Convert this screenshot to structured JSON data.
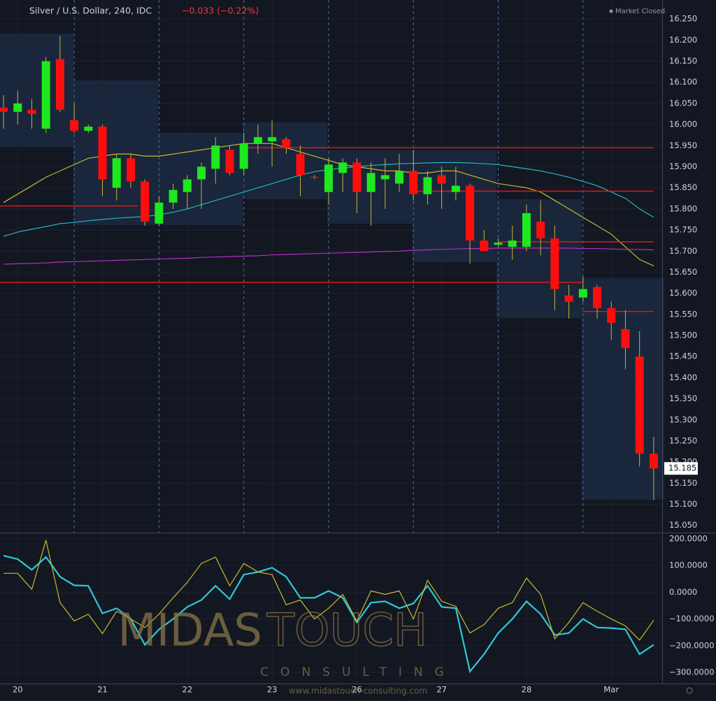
{
  "header": {
    "symbol": "Silver / U.S. Dollar, 240, IDC",
    "change": "−0.033 (−0.22%)",
    "status": "Market Closed"
  },
  "watermark": {
    "brand_left": "MIDAS",
    "brand_right": "TOUCH",
    "tagline": "CONSULTING",
    "url": "www.midastouch-consulting.com"
  },
  "chart_data": [
    {
      "type": "candlestick",
      "open": [
        16.04,
        16.03,
        16.035,
        15.99,
        16.155,
        16.01,
        15.985,
        15.995,
        15.85,
        15.92,
        15.865,
        15.765,
        15.815,
        15.84,
        15.87,
        15.895,
        15.94,
        15.895,
        15.955,
        15.96,
        15.965,
        15.93,
        15.876,
        15.84,
        15.885,
        15.91,
        15.84,
        15.87,
        15.86,
        15.89,
        15.835,
        15.88,
        15.84,
        15.855,
        15.725,
        15.715,
        15.71,
        15.71,
        15.77,
        15.73,
        15.595,
        15.59,
        15.615,
        15.565,
        15.515,
        15.45,
        15.22
      ],
      "high": [
        16.07,
        16.08,
        16.06,
        16.16,
        16.21,
        16.05,
        16.0,
        16.0,
        15.93,
        15.93,
        15.87,
        15.83,
        15.86,
        15.88,
        15.91,
        15.97,
        15.95,
        15.98,
        16.0,
        16.01,
        15.97,
        15.95,
        15.88,
        15.92,
        15.92,
        15.92,
        15.91,
        15.92,
        15.93,
        15.94,
        15.89,
        15.9,
        15.9,
        15.86,
        15.75,
        15.73,
        15.76,
        15.81,
        15.82,
        15.76,
        15.62,
        15.64,
        15.62,
        15.58,
        15.56,
        15.51,
        15.26
      ],
      "low": [
        15.99,
        16.0,
        15.99,
        15.98,
        16.03,
        15.98,
        15.98,
        15.83,
        15.82,
        15.85,
        15.76,
        15.76,
        15.8,
        15.8,
        15.8,
        15.86,
        15.88,
        15.88,
        15.93,
        15.9,
        15.93,
        15.83,
        15.87,
        15.81,
        15.84,
        15.79,
        15.76,
        15.8,
        15.84,
        15.82,
        15.81,
        15.8,
        15.82,
        15.67,
        15.7,
        15.71,
        15.68,
        15.7,
        15.69,
        15.56,
        15.54,
        15.58,
        15.54,
        15.49,
        15.42,
        15.19,
        15.11
      ],
      "close": [
        16.03,
        16.05,
        16.025,
        16.15,
        16.035,
        15.985,
        15.995,
        15.87,
        15.92,
        15.865,
        15.77,
        15.815,
        15.845,
        15.87,
        15.9,
        15.95,
        15.885,
        15.955,
        15.97,
        15.97,
        15.945,
        15.88,
        15.874,
        15.905,
        15.91,
        15.84,
        15.885,
        15.88,
        15.89,
        15.835,
        15.875,
        15.86,
        15.855,
        15.725,
        15.7,
        15.72,
        15.725,
        15.79,
        15.73,
        15.61,
        15.58,
        15.61,
        15.565,
        15.53,
        15.47,
        15.22,
        15.185
      ],
      "up_color": "#1ee81e",
      "down_color": "#ff0d0d",
      "ma_lines": [
        {
          "color": "#c9b82c",
          "values": [
            15.815,
            15.835,
            15.855,
            15.875,
            15.89,
            15.905,
            15.92,
            15.925,
            15.93,
            15.93,
            15.925,
            15.925,
            15.93,
            15.935,
            15.94,
            15.945,
            15.95,
            15.955,
            15.955,
            15.955,
            15.945,
            15.935,
            15.925,
            15.915,
            15.905,
            15.9,
            15.895,
            15.89,
            15.89,
            15.885,
            15.885,
            15.89,
            15.89,
            15.88,
            15.87,
            15.86,
            15.855,
            15.85,
            15.84,
            15.82,
            15.8,
            15.78,
            15.76,
            15.74,
            15.71,
            15.68,
            15.665
          ]
        },
        {
          "color": "#25b5c4",
          "values": [
            15.735,
            15.745,
            15.752,
            15.758,
            15.765,
            15.768,
            15.772,
            15.775,
            15.778,
            15.78,
            15.782,
            15.786,
            15.792,
            15.8,
            15.81,
            15.82,
            15.83,
            15.84,
            15.85,
            15.86,
            15.87,
            15.88,
            15.888,
            15.893,
            15.897,
            15.9,
            15.903,
            15.905,
            15.907,
            15.908,
            15.909,
            15.91,
            15.91,
            15.909,
            15.907,
            15.905,
            15.9,
            15.895,
            15.89,
            15.883,
            15.875,
            15.865,
            15.855,
            15.84,
            15.825,
            15.8,
            15.78
          ]
        },
        {
          "color": "#b32fc4",
          "values": [
            15.669,
            15.67,
            15.671,
            15.672,
            15.674,
            15.675,
            15.676,
            15.677,
            15.678,
            15.679,
            15.68,
            15.681,
            15.682,
            15.683,
            15.685,
            15.686,
            15.687,
            15.688,
            15.689,
            15.691,
            15.692,
            15.693,
            15.694,
            15.695,
            15.696,
            15.697,
            15.698,
            15.699,
            15.7,
            15.702,
            15.703,
            15.704,
            15.705,
            15.706,
            15.706,
            15.707,
            15.707,
            15.707,
            15.707,
            15.707,
            15.707,
            15.706,
            15.706,
            15.705,
            15.704,
            15.704,
            15.703
          ]
        }
      ],
      "levels": [
        {
          "value": 15.807,
          "x_range": [
            -0.25,
            9.5
          ]
        },
        {
          "value": 15.945,
          "x_range": [
            17,
            46
          ]
        },
        {
          "value": 15.842,
          "x_range": [
            29,
            46
          ]
        },
        {
          "value": 15.722,
          "x_range": [
            35,
            46
          ]
        },
        {
          "value": 15.626,
          "x_range": [
            -0.25,
            41
          ]
        },
        {
          "value": 15.557,
          "x_range": [
            41,
            46
          ]
        }
      ],
      "level_color": "#e01818",
      "session_starts": [
        5,
        11,
        17,
        23,
        29,
        35,
        41
      ],
      "last_price": 15.185,
      "xlim": [
        -0.25,
        46.6
      ],
      "xticks": [
        {
          "value": 1,
          "label": "20"
        },
        {
          "value": 7,
          "label": "21"
        },
        {
          "value": 13,
          "label": "22"
        },
        {
          "value": 19,
          "label": "23"
        },
        {
          "value": 25,
          "label": "26"
        },
        {
          "value": 31,
          "label": "27"
        },
        {
          "value": 37,
          "label": "28"
        },
        {
          "value": 43,
          "label": "Mar"
        }
      ],
      "ylim": [
        15.033,
        16.295
      ],
      "yticks": [
        {
          "value": 16.25,
          "label": "16.250"
        },
        {
          "value": 16.2,
          "label": "16.200"
        },
        {
          "value": 16.15,
          "label": "16.150"
        },
        {
          "value": 16.1,
          "label": "16.100"
        },
        {
          "value": 16.05,
          "label": "16.050"
        },
        {
          "value": 16.0,
          "label": "16.000"
        },
        {
          "value": 15.95,
          "label": "15.950"
        },
        {
          "value": 15.9,
          "label": "15.900"
        },
        {
          "value": 15.85,
          "label": "15.850"
        },
        {
          "value": 15.8,
          "label": "15.800"
        },
        {
          "value": 15.75,
          "label": "15.750"
        },
        {
          "value": 15.7,
          "label": "15.700"
        },
        {
          "value": 15.65,
          "label": "15.650"
        },
        {
          "value": 15.6,
          "label": "15.600"
        },
        {
          "value": 15.55,
          "label": "15.550"
        },
        {
          "value": 15.5,
          "label": "15.500"
        },
        {
          "value": 15.45,
          "label": "15.450"
        },
        {
          "value": 15.4,
          "label": "15.400"
        },
        {
          "value": 15.35,
          "label": "15.350"
        },
        {
          "value": 15.3,
          "label": "15.300"
        },
        {
          "value": 15.25,
          "label": "15.250"
        },
        {
          "value": 15.2,
          "label": "15.200"
        },
        {
          "value": 15.15,
          "label": "15.150"
        },
        {
          "value": 15.1,
          "label": "15.100"
        },
        {
          "value": 15.05,
          "label": "15.050"
        }
      ],
      "grid": true
    },
    {
      "type": "line",
      "series": [
        {
          "color": "#2ec8d6",
          "values": [
            137,
            124,
            84,
            132,
            58,
            26,
            24,
            -79,
            -60,
            -100,
            -197,
            -139,
            -100,
            -55,
            -29,
            24,
            -26,
            66,
            76,
            92,
            58,
            -21,
            -21,
            5,
            -21,
            -113,
            -39,
            -34,
            -60,
            -42,
            24,
            -55,
            -60,
            -297,
            -232,
            -153,
            -100,
            -34,
            -82,
            -160,
            -153,
            -100,
            -132,
            -134,
            -139,
            -232,
            -197
          ]
        },
        {
          "color": "#c9bb2a",
          "values": [
            71,
            71,
            11,
            195,
            -39,
            -108,
            -82,
            -155,
            -71,
            -100,
            -132,
            -82,
            -21,
            37,
            108,
            132,
            24,
            108,
            76,
            66,
            -47,
            -29,
            -100,
            -60,
            -8,
            -108,
            5,
            -8,
            5,
            -100,
            45,
            -34,
            -53,
            -153,
            -121,
            -60,
            -39,
            53,
            -8,
            -174,
            -113,
            -39,
            -71,
            -100,
            -126,
            -179,
            -105
          ]
        }
      ],
      "xlim": [
        -0.25,
        46.6
      ],
      "ylim": [
        -342,
        221
      ],
      "yticks": [
        {
          "value": 200,
          "label": "200.0000"
        },
        {
          "value": 100,
          "label": "100.0000"
        },
        {
          "value": 0,
          "label": "0.0000"
        },
        {
          "value": -100,
          "label": "−100.0000"
        },
        {
          "value": -200,
          "label": "−200.0000"
        },
        {
          "value": -300,
          "label": "−300.0000"
        }
      ],
      "grid": true
    }
  ]
}
